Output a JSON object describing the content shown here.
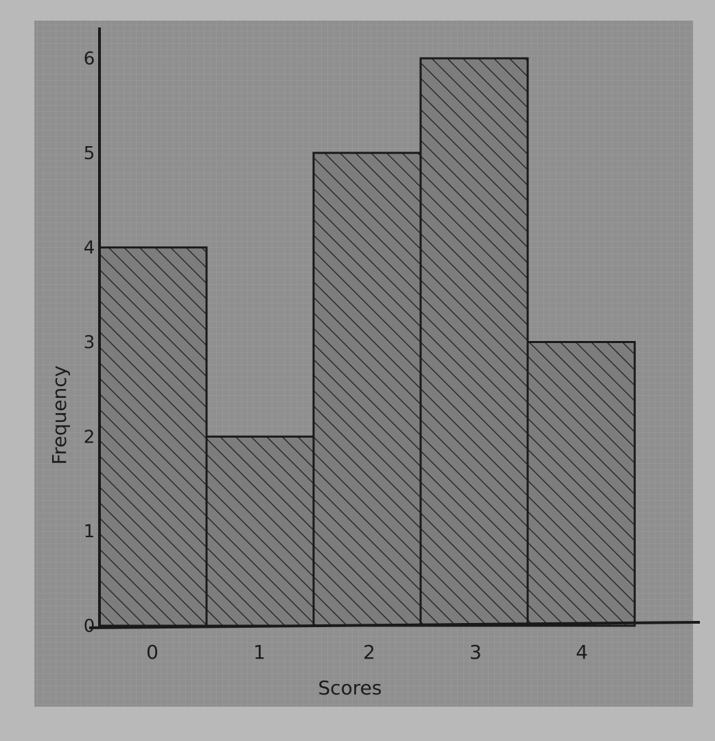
{
  "chart_data": {
    "type": "bar",
    "categories": [
      "0",
      "1",
      "2",
      "3",
      "4"
    ],
    "values": [
      4,
      2,
      5,
      6,
      3
    ],
    "xlabel": "Scores",
    "ylabel": "Frequency",
    "ylim": [
      0,
      6
    ],
    "y_ticks": [
      "0",
      "1",
      "2",
      "3",
      "4",
      "5",
      "6"
    ],
    "grid": true,
    "bar_pattern": "diagonal-hatch",
    "colors": {
      "background": "#8f8f8f",
      "paper": "#b9b9b9",
      "bar_fill": "#7d7d7d",
      "hatch": "#2a2a2a",
      "axis": "#1a1a1a",
      "grid": "#9c9c9c"
    }
  }
}
